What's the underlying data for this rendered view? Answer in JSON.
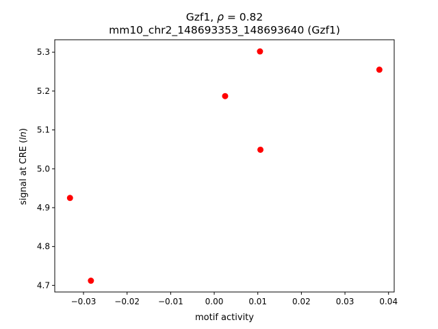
{
  "chart_data": {
    "type": "scatter",
    "title_line1_prefix": "Gzf1, ",
    "title_line1_symbol": "ρ",
    "title_line1_suffix": " = 0.82",
    "title_line2": "mm10_chr2_148693353_148693640 (Gzf1)",
    "xlabel": "motif activity",
    "ylabel_prefix": "signal at CRE (",
    "ylabel_italic": "ln",
    "ylabel_suffix": ")",
    "xlim": [
      -0.0366,
      0.0413
    ],
    "ylim": [
      4.683,
      5.332
    ],
    "xticks": [
      -0.03,
      -0.02,
      -0.01,
      0.0,
      0.01,
      0.02,
      0.03,
      0.04
    ],
    "xtick_labels": [
      "−0.03",
      "−0.02",
      "−0.01",
      "0.00",
      "0.01",
      "0.02",
      "0.03",
      "0.04"
    ],
    "yticks": [
      4.7,
      4.8,
      4.9,
      5.0,
      5.1,
      5.2,
      5.3
    ],
    "ytick_labels": [
      "4.7",
      "4.8",
      "4.9",
      "5.0",
      "5.1",
      "5.2",
      "5.3"
    ],
    "grid": false,
    "marker_color": "#ff0000",
    "points": [
      {
        "x": -0.0331,
        "y": 4.925
      },
      {
        "x": -0.0283,
        "y": 4.712
      },
      {
        "x": 0.0025,
        "y": 5.187
      },
      {
        "x": 0.0105,
        "y": 5.302
      },
      {
        "x": 0.0106,
        "y": 5.049
      },
      {
        "x": 0.0379,
        "y": 5.255
      }
    ]
  }
}
